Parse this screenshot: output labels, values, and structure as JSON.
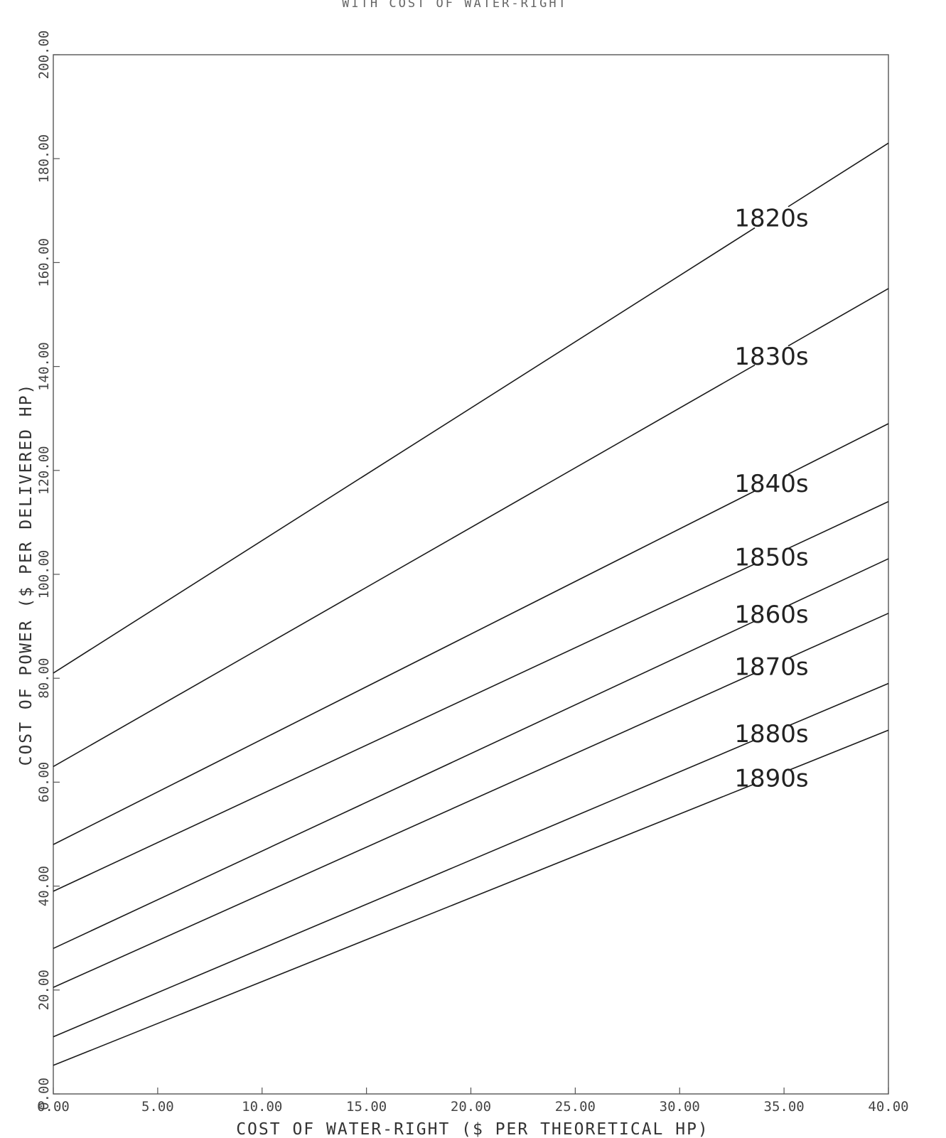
{
  "chart_data": {
    "type": "line",
    "title": "WITH COST OF WATER-RIGHT",
    "xlabel": "COST OF WATER-RIGHT ($ PER THEORETICAL HP)",
    "ylabel": "COST OF POWER ($ PER DELIVERED HP)",
    "xlim": [
      0,
      40
    ],
    "ylim": [
      0,
      200
    ],
    "xticks": [
      0,
      5,
      10,
      15,
      20,
      25,
      30,
      35,
      40
    ],
    "xtick_labels": [
      "0.00",
      "5.00",
      "10.00",
      "15.00",
      "20.00",
      "25.00",
      "30.00",
      "35.00",
      "40.00"
    ],
    "yticks": [
      0,
      20,
      40,
      60,
      80,
      100,
      120,
      140,
      160,
      180,
      200
    ],
    "ytick_labels": [
      "0.00",
      "20.00",
      "40.00",
      "60.00",
      "80.00",
      "100.00",
      "120.00",
      "140.00",
      "160.00",
      "180.00",
      "200.00"
    ],
    "grid": false,
    "series": [
      {
        "name": "1820s",
        "x": [
          0,
          40
        ],
        "y": [
          81,
          183
        ]
      },
      {
        "name": "1830s",
        "x": [
          0,
          40
        ],
        "y": [
          63,
          155
        ]
      },
      {
        "name": "1840s",
        "x": [
          0,
          40
        ],
        "y": [
          48,
          129
        ]
      },
      {
        "name": "1850s",
        "x": [
          0,
          40
        ],
        "y": [
          39,
          114
        ]
      },
      {
        "name": "1860s",
        "x": [
          0,
          40
        ],
        "y": [
          28,
          103
        ]
      },
      {
        "name": "1870s",
        "x": [
          0,
          40
        ],
        "y": [
          20.5,
          92.5
        ]
      },
      {
        "name": "1880s",
        "x": [
          0,
          40
        ],
        "y": [
          11,
          79
        ]
      },
      {
        "name": "1890s",
        "x": [
          0,
          40
        ],
        "y": [
          5.5,
          70
        ]
      }
    ]
  }
}
